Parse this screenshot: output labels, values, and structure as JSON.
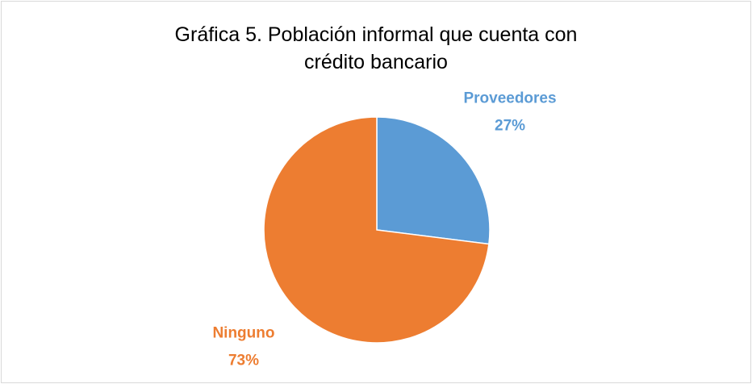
{
  "chart_data": {
    "type": "pie",
    "title": "Gráfica 5. Población informal que cuenta con crédito bancario",
    "categories": [
      "Proveedores",
      "Ninguno"
    ],
    "values": [
      27,
      73
    ],
    "value_labels": [
      "27%",
      "73%"
    ],
    "colors": [
      "#5b9bd5",
      "#ed7d31"
    ]
  }
}
